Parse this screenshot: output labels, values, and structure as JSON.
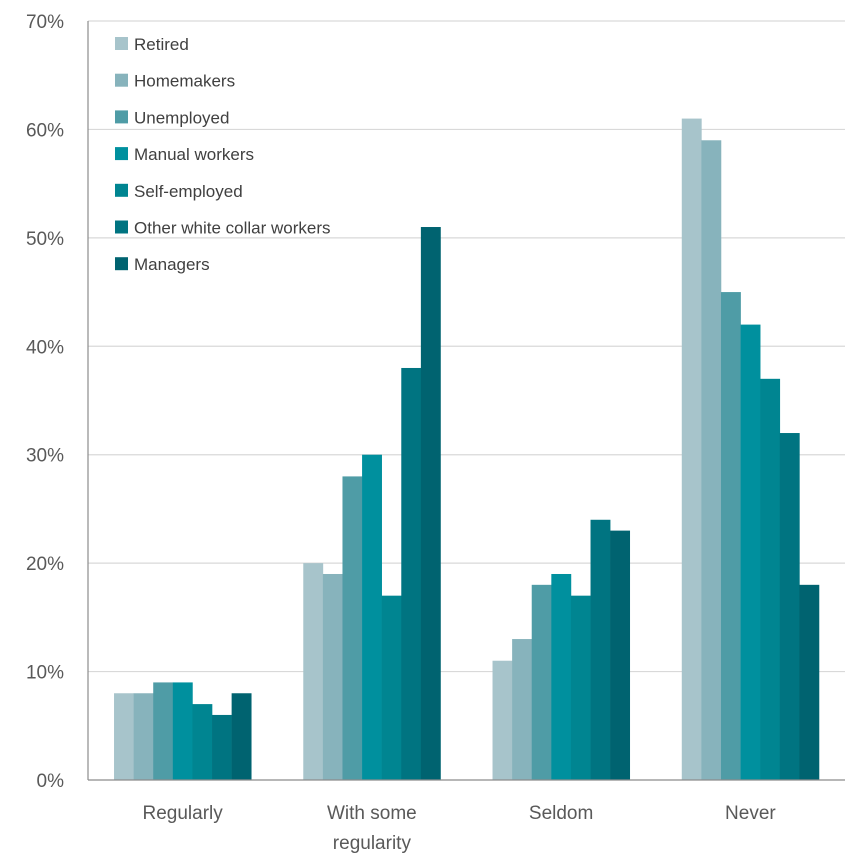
{
  "chart_data": {
    "type": "bar",
    "title": "",
    "xlabel": "",
    "ylabel": "",
    "categories": [
      "Regularly",
      "With some regularity",
      "Seldom",
      "Never"
    ],
    "category_lines": [
      [
        "Regularly"
      ],
      [
        "With some",
        "regularity"
      ],
      [
        "Seldom"
      ],
      [
        "Never"
      ]
    ],
    "y_ticks": [
      "0%",
      "10%",
      "20%",
      "30%",
      "40%",
      "50%",
      "60%",
      "70%"
    ],
    "ylim": [
      0,
      70
    ],
    "grid": true,
    "legend_position": "top-left",
    "series": [
      {
        "name": "Retired",
        "color": "#a7c4cb",
        "values": [
          8,
          20,
          11,
          61
        ]
      },
      {
        "name": "Homemakers",
        "color": "#87b3bc",
        "values": [
          8,
          19,
          13,
          59
        ]
      },
      {
        "name": "Unemployed",
        "color": "#4f9ca6",
        "values": [
          9,
          28,
          18,
          45
        ]
      },
      {
        "name": "Manual workers",
        "color": "#00909e",
        "values": [
          9,
          30,
          19,
          42
        ]
      },
      {
        "name": "Self-employed",
        "color": "#008591",
        "values": [
          7,
          17,
          17,
          37
        ]
      },
      {
        "name": "Other white collar workers",
        "color": "#007481",
        "values": [
          6,
          38,
          24,
          32
        ]
      },
      {
        "name": "Managers",
        "color": "#006370",
        "values": [
          8,
          51,
          23,
          18
        ]
      }
    ]
  }
}
